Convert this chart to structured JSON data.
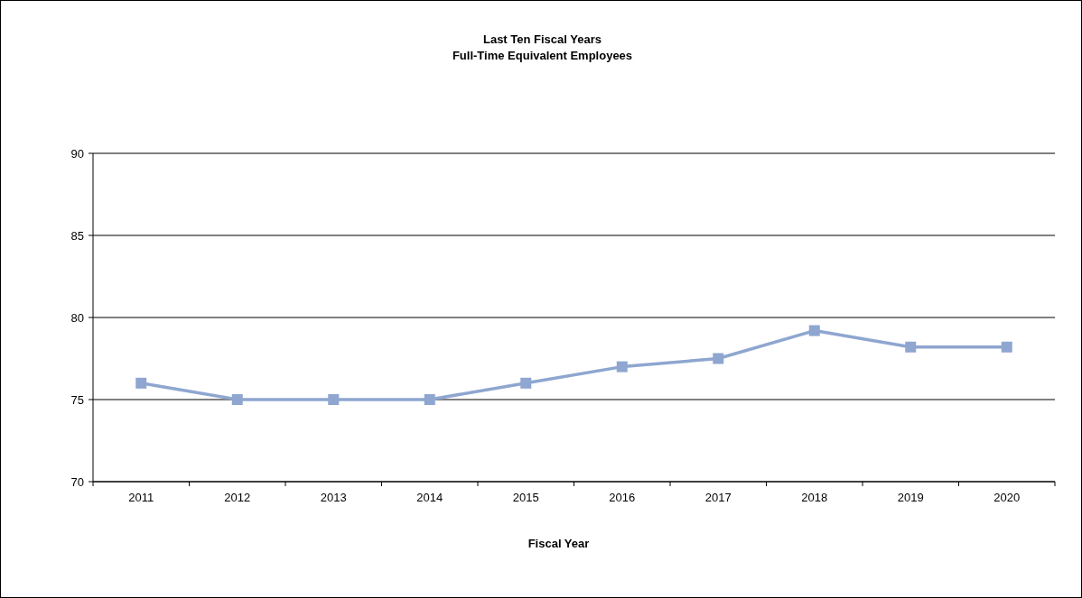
{
  "chart_data": {
    "type": "line",
    "title": "Last Ten Fiscal Years",
    "subtitle": "Full-Time Equivalent Employees",
    "xlabel": "Fiscal Year",
    "categories": [
      "2011",
      "2012",
      "2013",
      "2014",
      "2015",
      "2016",
      "2017",
      "2018",
      "2019",
      "2020"
    ],
    "series": [
      {
        "color": "#8ea6d0",
        "values": [
          76,
          75,
          75,
          75,
          76,
          77,
          77.5,
          79.2,
          78.2,
          78.2
        ]
      }
    ],
    "ylim": [
      70,
      90
    ],
    "yticks": [
      70,
      75,
      80,
      85,
      90
    ],
    "grid": "y",
    "marker": "square",
    "line_style": "solid"
  }
}
